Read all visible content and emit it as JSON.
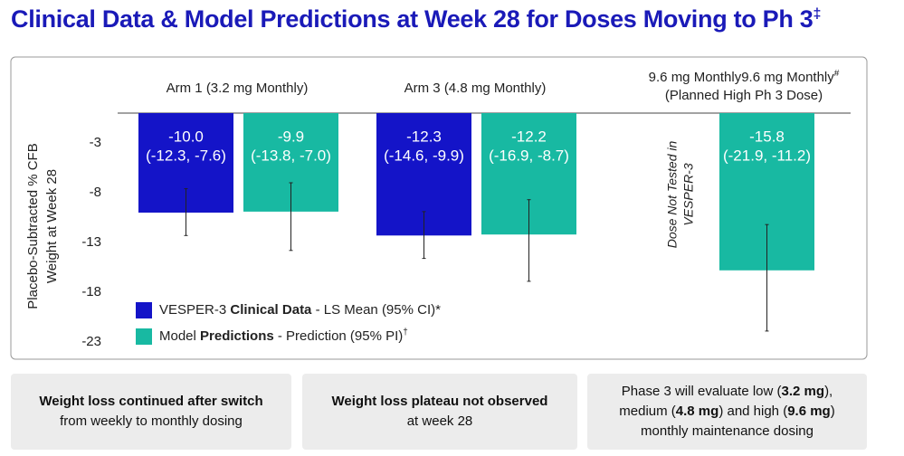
{
  "chart_data": {
    "type": "bar",
    "title": "Clinical Data & Model Predictions at Week 28 for Doses Moving to Ph 3",
    "title_mark": "‡",
    "y_label": [
      "Placebo-Subtracted % CFB",
      "Weight at Week 28"
    ],
    "categories": [
      [
        "Arm 1 (3.2 mg Monthly)"
      ],
      [
        "Arm 3 (4.8 mg Monthly)"
      ],
      [
        "9.6 mg Monthly",
        "(Planned High Ph 3 Dose)"
      ]
    ],
    "category_marks": [
      null,
      null,
      "#"
    ],
    "series": [
      {
        "name_parts": [
          {
            "text": "VESPER-3 "
          },
          {
            "text": "Clinical Data",
            "bold": true
          },
          {
            "text": " - LS Mean (95% CI)*"
          }
        ],
        "color": "#1414c8",
        "values": [
          -10.0,
          -12.3,
          null
        ],
        "value_labels": [
          "-10.0",
          "-12.3",
          null
        ],
        "ci_labels": [
          "(-12.3, -7.6)",
          "(-14.6, -9.9)",
          null
        ],
        "lower": [
          -12.3,
          -14.6,
          null
        ],
        "upper": [
          -7.6,
          -9.9,
          null
        ]
      },
      {
        "name_parts": [
          {
            "text": "Model "
          },
          {
            "text": "Predictions",
            "bold": true
          },
          {
            "text": " - Prediction (95% PI)"
          },
          {
            "text": "†",
            "sup": true
          }
        ],
        "color": "#18b9a2",
        "values": [
          -9.9,
          -12.2,
          -15.8
        ],
        "value_labels": [
          "-9.9",
          "-12.2",
          "-15.8"
        ],
        "ci_labels": [
          "(-13.8, -7.0)",
          "(-16.9, -8.7)",
          "(-21.9, -11.2)"
        ],
        "lower": [
          -13.8,
          -16.9,
          -21.9
        ],
        "upper": [
          -7.0,
          -8.7,
          -11.2
        ]
      }
    ],
    "annotation": [
      "Dose Not Tested in",
      "VESPER-3"
    ],
    "ylim": [
      -23,
      0
    ],
    "yticks": [
      -3,
      -8,
      -13,
      -18,
      -23
    ]
  },
  "footer": {
    "boxes": [
      {
        "lines": [
          [
            {
              "text": "Weight loss continued after switch",
              "bold": true
            }
          ],
          [
            {
              "text": "from weekly to monthly dosing"
            }
          ]
        ]
      },
      {
        "lines": [
          [
            {
              "text": "Weight loss plateau not observed",
              "bold": true
            }
          ],
          [
            {
              "text": "at week 28"
            }
          ]
        ]
      },
      {
        "lines": [
          [
            {
              "text": "Phase 3 will evaluate low ("
            },
            {
              "text": "3.2 mg",
              "bold": true
            },
            {
              "text": "),"
            }
          ],
          [
            {
              "text": "medium ("
            },
            {
              "text": "4.8 mg",
              "bold": true
            },
            {
              "text": ") and high ("
            },
            {
              "text": "9.6 mg",
              "bold": true
            },
            {
              "text": ")"
            }
          ],
          [
            {
              "text": "monthly maintenance dosing"
            }
          ]
        ]
      }
    ]
  }
}
